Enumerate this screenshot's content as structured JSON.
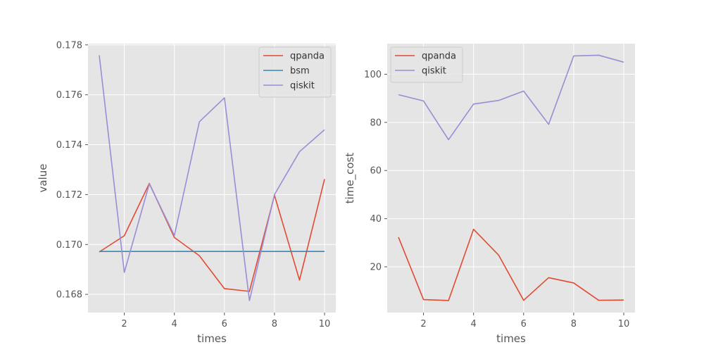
{
  "chart_data": [
    {
      "type": "line",
      "xlabel": "times",
      "ylabel": "value",
      "x": [
        1,
        2,
        3,
        4,
        5,
        6,
        7,
        8,
        9,
        10
      ],
      "xlim": [
        0.55,
        10.45
      ],
      "ylim": [
        0.16727,
        0.17805
      ],
      "xticks": [
        2,
        4,
        6,
        8,
        10
      ],
      "yticks": [
        0.168,
        0.17,
        0.172,
        0.174,
        0.176,
        0.178
      ],
      "ytick_labels": [
        "0.168",
        "0.170",
        "0.172",
        "0.174",
        "0.176",
        "0.178"
      ],
      "grid": true,
      "legend_position": "upper right",
      "series": [
        {
          "name": "qpanda",
          "color": "#E24A33",
          "values": [
            0.1697,
            0.17035,
            0.17245,
            0.17028,
            0.16955,
            0.16823,
            0.16812,
            0.17197,
            0.16857,
            0.17262
          ]
        },
        {
          "name": "bsm",
          "color": "#348ABD",
          "values": [
            0.16972,
            0.16972,
            0.16972,
            0.16972,
            0.16972,
            0.16972,
            0.16972,
            0.16972,
            0.16972,
            0.16972
          ]
        },
        {
          "name": "qiskit",
          "color": "#988ED5",
          "values": [
            0.17758,
            0.16888,
            0.17243,
            0.17036,
            0.17492,
            0.17588,
            0.16775,
            0.172,
            0.17372,
            0.1746
          ]
        }
      ]
    },
    {
      "type": "line",
      "xlabel": "times",
      "ylabel": "time_cost",
      "x": [
        1,
        2,
        3,
        4,
        5,
        6,
        7,
        8,
        9,
        10
      ],
      "xlim": [
        0.55,
        10.45
      ],
      "ylim": [
        1.0,
        112.7
      ],
      "xticks": [
        2,
        4,
        6,
        8,
        10
      ],
      "yticks": [
        20,
        40,
        60,
        80,
        100
      ],
      "ytick_labels": [
        "20",
        "40",
        "60",
        "80",
        "100"
      ],
      "grid": true,
      "legend_position": "upper left",
      "series": [
        {
          "name": "qpanda",
          "color": "#E24A33",
          "values": [
            32.3,
            6.4,
            6.0,
            35.6,
            24.9,
            6.1,
            15.5,
            13.3,
            6.1,
            6.2
          ]
        },
        {
          "name": "qiskit",
          "color": "#988ED5",
          "values": [
            91.5,
            88.9,
            72.8,
            87.6,
            89.1,
            93.0,
            79.2,
            107.6,
            107.9,
            105.0
          ]
        }
      ]
    }
  ]
}
